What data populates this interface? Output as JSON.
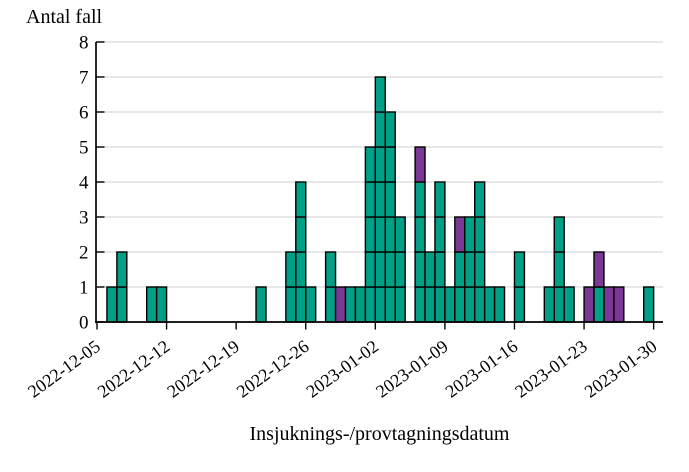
{
  "page": {
    "background": "#FFFFFF"
  },
  "chart_data": {
    "type": "bar",
    "subtype": "stacked-unit-histogram-epicurve",
    "title": "",
    "ylabel": "Antal fall",
    "xlabel": "Insjuknings-/provtagningsdatum",
    "ylim": [
      0,
      8
    ],
    "yticks": [
      0,
      1,
      2,
      3,
      4,
      5,
      6,
      7,
      8
    ],
    "grid": "horizontal",
    "legend_position": "none",
    "x_start_date": "2022-12-05",
    "x_end_date": "2023-01-30",
    "xtick_labels": [
      "2022-12-05",
      "2022-12-12",
      "2022-12-19",
      "2022-12-26",
      "2023-01-02",
      "2023-01-09",
      "2023-01-16",
      "2023-01-23",
      "2023-01-30"
    ],
    "xtick_label_rotation_deg": -36,
    "series": [
      {
        "name": "cases-teal",
        "color": "#00A087"
      },
      {
        "name": "cases-purple",
        "color": "#7B3894"
      }
    ],
    "bar_border_color": "#000000",
    "gridline_color": "#D9D9D9",
    "axis_color": "#000000",
    "bars": [
      {
        "date": "2022-12-06",
        "teal": 1,
        "purple": 0
      },
      {
        "date": "2022-12-07",
        "teal": 2,
        "purple": 0
      },
      {
        "date": "2022-12-10",
        "teal": 1,
        "purple": 0
      },
      {
        "date": "2022-12-11",
        "teal": 1,
        "purple": 0
      },
      {
        "date": "2022-12-21",
        "teal": 1,
        "purple": 0
      },
      {
        "date": "2022-12-24",
        "teal": 2,
        "purple": 0
      },
      {
        "date": "2022-12-25",
        "teal": 4,
        "purple": 0
      },
      {
        "date": "2022-12-26",
        "teal": 1,
        "purple": 0
      },
      {
        "date": "2022-12-28",
        "teal": 2,
        "purple": 0
      },
      {
        "date": "2022-12-29",
        "teal": 0,
        "purple": 1
      },
      {
        "date": "2022-12-30",
        "teal": 1,
        "purple": 0
      },
      {
        "date": "2022-12-31",
        "teal": 1,
        "purple": 0
      },
      {
        "date": "2023-01-01",
        "teal": 5,
        "purple": 0
      },
      {
        "date": "2023-01-02",
        "teal": 7,
        "purple": 0
      },
      {
        "date": "2023-01-03",
        "teal": 6,
        "purple": 0
      },
      {
        "date": "2023-01-04",
        "teal": 3,
        "purple": 0
      },
      {
        "date": "2023-01-06",
        "teal": 4,
        "purple": 1
      },
      {
        "date": "2023-01-07",
        "teal": 2,
        "purple": 0
      },
      {
        "date": "2023-01-08",
        "teal": 4,
        "purple": 0
      },
      {
        "date": "2023-01-09",
        "teal": 1,
        "purple": 0
      },
      {
        "date": "2023-01-10",
        "teal": 2,
        "purple": 1
      },
      {
        "date": "2023-01-11",
        "teal": 3,
        "purple": 0
      },
      {
        "date": "2023-01-12",
        "teal": 4,
        "purple": 0
      },
      {
        "date": "2023-01-13",
        "teal": 1,
        "purple": 0
      },
      {
        "date": "2023-01-14",
        "teal": 1,
        "purple": 0
      },
      {
        "date": "2023-01-16",
        "teal": 2,
        "purple": 0
      },
      {
        "date": "2023-01-19",
        "teal": 1,
        "purple": 0
      },
      {
        "date": "2023-01-20",
        "teal": 3,
        "purple": 0
      },
      {
        "date": "2023-01-21",
        "teal": 1,
        "purple": 0
      },
      {
        "date": "2023-01-23",
        "teal": 0,
        "purple": 1
      },
      {
        "date": "2023-01-24",
        "teal": 1,
        "purple": 1
      },
      {
        "date": "2023-01-25",
        "teal": 0,
        "purple": 1
      },
      {
        "date": "2023-01-26",
        "teal": 0,
        "purple": 1
      },
      {
        "date": "2023-01-29",
        "teal": 1,
        "purple": 0
      }
    ]
  }
}
